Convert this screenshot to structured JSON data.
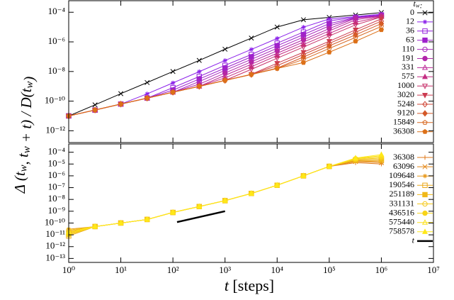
{
  "chart_data": [
    {
      "type": "line",
      "ylabel": "Δ (tw, tw + t) / D(tw)",
      "legend_title": "tw:",
      "legend": "right",
      "xscale": "log",
      "yscale": "log",
      "xlim": [
        1,
        10000000
      ],
      "xticks": [
        1,
        10,
        100,
        1000,
        10000,
        100000,
        1000000,
        10000000
      ],
      "ylim": [
        1.6e-13,
        0.0006
      ],
      "yticks": [
        {
          "value": 1e-12,
          "label": "10⁻¹²"
        },
        {
          "value": 1e-10,
          "label": "10⁻¹⁰"
        },
        {
          "value": 1e-08,
          "label": "10⁻⁸"
        },
        {
          "value": 1e-06,
          "label": "10⁻⁶"
        },
        {
          "value": 0.0001,
          "label": "10⁻⁴"
        }
      ],
      "x": [
        1,
        3.2,
        10,
        32,
        100,
        320,
        1000,
        3200,
        10000,
        32000,
        100000,
        320000,
        1000000
      ],
      "series": [
        {
          "name": "0",
          "color": "#000000",
          "marker": "x",
          "values": [
            1e-11,
            5.6e-11,
            3.2e-10,
            1.8e-09,
            1e-08,
            5.6e-08,
            3.2e-07,
            1.8e-06,
            1e-05,
            3.1e-05,
            4.5e-05,
            6.5e-05,
            9.5e-05
          ]
        },
        {
          "name": "12",
          "color": "#8a1fea",
          "marker": "star",
          "values": [
            1e-11,
            2.5e-11,
            6.3e-11,
            3.1e-10,
            1.7e-09,
            9.8e-09,
            5.5e-08,
            3.1e-07,
            1.7e-06,
            9.8e-06,
            3.5e-05,
            5.1e-05,
            7.4e-05
          ]
        },
        {
          "name": "36",
          "color": "#9420dc",
          "marker": "square-open",
          "values": [
            1e-11,
            2.5e-11,
            6.3e-11,
            1.6e-10,
            8.1e-10,
            4.6e-09,
            2.6e-08,
            1.4e-07,
            8.1e-07,
            4.6e-06,
            2.6e-05,
            4.6e-05,
            6.6e-05
          ]
        },
        {
          "name": "63",
          "color": "#9e22cc",
          "marker": "square",
          "values": [
            1e-11,
            2.5e-11,
            6.3e-11,
            1.6e-10,
            5.5e-10,
            3.1e-09,
            1.7e-08,
            9.8e-08,
            5.5e-07,
            3.1e-06,
            1.7e-05,
            4.3e-05,
            6.3e-05
          ]
        },
        {
          "name": "110",
          "color": "#a824bc",
          "marker": "circle-open",
          "values": [
            1e-11,
            2.5e-11,
            6.3e-11,
            1.6e-10,
            4e-10,
            2.1e-09,
            1.2e-08,
            6.6e-08,
            3.7e-07,
            2.1e-06,
            1.2e-05,
            4.1e-05,
            6e-05
          ]
        },
        {
          "name": "191",
          "color": "#b226aa",
          "marker": "circle",
          "values": [
            1e-11,
            2.5e-11,
            6.3e-11,
            1.6e-10,
            4e-10,
            1.4e-09,
            7.9e-09,
            4.5e-08,
            2.5e-07,
            1.4e-06,
            7.9e-06,
            3.9e-05,
            5.6e-05
          ]
        },
        {
          "name": "331",
          "color": "#bc2898",
          "marker": "triangle-open",
          "values": [
            1e-11,
            2.5e-11,
            6.3e-11,
            1.6e-10,
            4e-10,
            1e-09,
            5.5e-09,
            3.1e-08,
            1.7e-07,
            9.8e-07,
            5.5e-06,
            3.1e-05,
            5.4e-05
          ]
        },
        {
          "name": "575",
          "color": "#c42c82",
          "marker": "triangle",
          "values": [
            1e-11,
            2.5e-11,
            6.3e-11,
            1.6e-10,
            4e-10,
            1e-09,
            3.7e-09,
            2.1e-08,
            1.2e-07,
            6.6e-07,
            3.7e-06,
            2.1e-05,
            5e-05
          ]
        },
        {
          "name": "1000",
          "color": "#c8306a",
          "marker": "triangle-down-open",
          "values": [
            1e-11,
            2.5e-11,
            6.3e-11,
            1.6e-10,
            4e-10,
            1e-09,
            2.5e-09,
            1.4e-08,
            7.9e-08,
            4.5e-07,
            2.5e-06,
            1.4e-05,
            4.8e-05
          ]
        },
        {
          "name": "3020",
          "color": "#cc3a50",
          "marker": "triangle-down",
          "values": [
            1e-11,
            2.5e-11,
            6.3e-11,
            1.6e-10,
            4e-10,
            1e-09,
            2.5e-09,
            6.5e-09,
            3.6e-08,
            2e-07,
            1.1e-06,
            6.5e-06,
            3.6e-05
          ]
        },
        {
          "name": "5248",
          "color": "#d04838",
          "marker": "diamond-open",
          "values": [
            1e-11,
            2.5e-11,
            6.3e-11,
            1.6e-10,
            4e-10,
            1e-09,
            2.5e-09,
            6.3e-09,
            2.5e-08,
            1.4e-07,
            7.9e-07,
            4.5e-06,
            2.5e-05
          ]
        },
        {
          "name": "9120",
          "color": "#d45828",
          "marker": "diamond",
          "values": [
            1e-11,
            2.5e-11,
            6.3e-11,
            1.6e-10,
            4e-10,
            1e-09,
            2.5e-09,
            6.3e-09,
            1.7e-08,
            9.5e-08,
            5.4e-07,
            3e-06,
            1.7e-05
          ]
        },
        {
          "name": "15849",
          "color": "#d86820",
          "marker": "pentagon-open",
          "values": [
            1e-11,
            2.5e-11,
            6.3e-11,
            1.6e-10,
            4e-10,
            1e-09,
            2.5e-09,
            6.3e-09,
            1.6e-08,
            6.5e-08,
            3.6e-07,
            2e-06,
            1.1e-05
          ]
        },
        {
          "name": "36308",
          "color": "#dc7018",
          "marker": "pentagon",
          "values": [
            1e-11,
            2.5e-11,
            6.3e-11,
            1.6e-10,
            4e-10,
            1e-09,
            2.5e-09,
            6.3e-09,
            1.6e-08,
            4e-08,
            2e-07,
            1.1e-06,
            6.5e-06
          ]
        }
      ]
    },
    {
      "type": "line",
      "xlabel": "t [steps]",
      "legend": "right",
      "xscale": "log",
      "yscale": "log",
      "xlim": [
        1,
        10000000
      ],
      "xticks": [
        {
          "value": 1,
          "label": "10⁰"
        },
        {
          "value": 10,
          "label": "10¹"
        },
        {
          "value": 100,
          "label": "10²"
        },
        {
          "value": 1000,
          "label": "10³"
        },
        {
          "value": 10000,
          "label": "10⁴"
        },
        {
          "value": 100000,
          "label": "10⁵"
        },
        {
          "value": 1000000,
          "label": "10⁶"
        },
        {
          "value": 10000000,
          "label": "10⁷"
        }
      ],
      "ylim": [
        4.6e-14,
        0.0005
      ],
      "yticks": [
        {
          "value": 1e-13,
          "label": "10⁻¹³"
        },
        {
          "value": 1e-12,
          "label": "10⁻¹²"
        },
        {
          "value": 1e-11,
          "label": "10⁻¹¹"
        },
        {
          "value": 1e-10,
          "label": "10⁻¹⁰"
        },
        {
          "value": 1e-09,
          "label": "10⁻⁹"
        },
        {
          "value": 1e-08,
          "label": "10⁻⁸"
        },
        {
          "value": 1e-07,
          "label": "10⁻⁷"
        },
        {
          "value": 1e-06,
          "label": "10⁻⁶"
        },
        {
          "value": 1e-05,
          "label": "10⁻⁵"
        },
        {
          "value": 0.0001,
          "label": "10⁻⁴"
        }
      ],
      "x": [
        1,
        3.2,
        10,
        32,
        100,
        320,
        1000,
        3200,
        10000,
        32000,
        100000,
        320000,
        1000000
      ],
      "series": [
        {
          "name": "36308",
          "color": "#e07818",
          "marker": "plus",
          "values": [
            2e-11,
            5e-11,
            1e-10,
            2e-10,
            7.9e-10,
            2.5e-09,
            7.9e-09,
            3.2e-08,
            1.6e-07,
            1e-06,
            6.3e-06,
            1.3e-05,
            1e-05
          ]
        },
        {
          "name": "63096",
          "color": "#e48818",
          "marker": "x",
          "values": [
            1.2e-11,
            5e-11,
            1e-10,
            2e-10,
            7.9e-10,
            2.5e-09,
            7.9e-09,
            3.2e-08,
            1.6e-07,
            1e-06,
            6.3e-06,
            1.6e-05,
            1.3e-05
          ]
        },
        {
          "name": "109648",
          "color": "#e89818",
          "marker": "star",
          "values": [
            3e-11,
            5e-11,
            1e-10,
            2e-10,
            7.9e-10,
            2.5e-09,
            7.9e-09,
            3.2e-08,
            1.6e-07,
            1e-06,
            6.3e-06,
            1.8e-05,
            1.6e-05
          ]
        },
        {
          "name": "190546",
          "color": "#eca818",
          "marker": "square-open",
          "values": [
            8e-12,
            5e-11,
            1e-10,
            2e-10,
            7.9e-10,
            2.5e-09,
            7.9e-09,
            3.2e-08,
            1.6e-07,
            1e-06,
            6.3e-06,
            2e-05,
            2e-05
          ]
        },
        {
          "name": "251189",
          "color": "#f0b818",
          "marker": "square",
          "values": [
            1.5e-11,
            5e-11,
            1e-10,
            2e-10,
            7.9e-10,
            2.5e-09,
            7.9e-09,
            3.2e-08,
            1.6e-07,
            1e-06,
            6.3e-06,
            2.2e-05,
            2.5e-05
          ]
        },
        {
          "name": "331131",
          "color": "#f4c818",
          "marker": "circle-open",
          "values": [
            2.5e-11,
            5e-11,
            1e-10,
            2e-10,
            7.9e-10,
            2.5e-09,
            7.9e-09,
            3.2e-08,
            1.6e-07,
            1e-06,
            6.3e-06,
            2.5e-05,
            3.2e-05
          ]
        },
        {
          "name": "436516",
          "color": "#f8d418",
          "marker": "circle",
          "values": [
            1e-11,
            5e-11,
            1e-10,
            2e-10,
            7.9e-10,
            2.5e-09,
            7.9e-09,
            3.2e-08,
            1.6e-07,
            1e-06,
            6.3e-06,
            2.8e-05,
            4e-05
          ]
        },
        {
          "name": "575440",
          "color": "#fce018",
          "marker": "triangle-open",
          "values": [
            1.3e-11,
            5e-11,
            1e-10,
            2e-10,
            7.9e-10,
            2.5e-09,
            7.9e-09,
            3.2e-08,
            1.6e-07,
            1e-06,
            6.3e-06,
            3e-05,
            5e-05
          ]
        },
        {
          "name": "758578",
          "color": "#ffe818",
          "marker": "triangle",
          "values": [
            1.8e-11,
            5e-11,
            1e-10,
            2e-10,
            7.9e-10,
            2.5e-09,
            7.9e-09,
            3.2e-08,
            1.6e-07,
            1e-06,
            6.3e-06,
            3.2e-05,
            6.3e-05
          ]
        },
        {
          "name": "t",
          "color": "#000000",
          "x": [
            120,
            1000
          ],
          "values": [
            1.2e-10,
            1e-09
          ]
        }
      ]
    }
  ]
}
